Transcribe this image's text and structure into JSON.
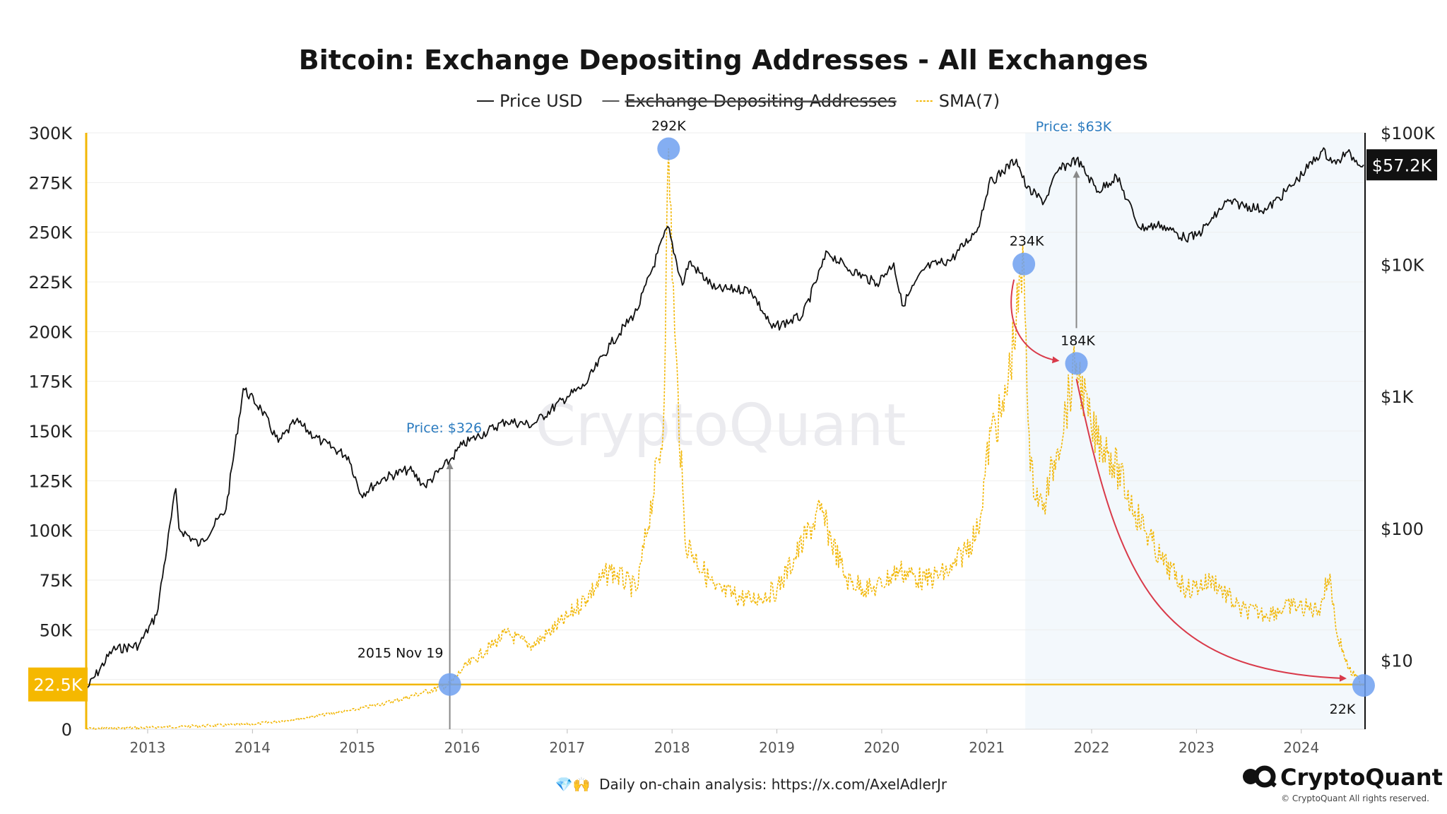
{
  "title": "Bitcoin: Exchange Depositing Addresses - All Exchanges",
  "legend": [
    {
      "label": "Price USD",
      "style": "solid",
      "color": "#222222",
      "struck": false
    },
    {
      "label": "Exchange Depositing Addresses",
      "style": "solid",
      "color": "#555555",
      "struck": true
    },
    {
      "label": "SMA(7)",
      "style": "dashed",
      "color": "#f2b705",
      "struck": false
    }
  ],
  "watermark": "CryptoQuant",
  "footer_text": "Daily on-chain analysis: https://x.com/AxelAdlerJr",
  "footer_icons": "💎🙌",
  "brand": "CryptoQuant",
  "copyright": "© CryptoQuant All rights reserved.",
  "colors": {
    "price": "#111111",
    "sma": "#f2b705",
    "left_axis": "#f2b705",
    "highlight_band": "#f3f8fc",
    "marker": "#6ea0f0",
    "arrow_red": "#d93a4a",
    "arrow_gray": "#888888",
    "badge_yellow": "#f5b800",
    "badge_black": "#111111"
  },
  "chart_data": {
    "type": "line",
    "title": "Bitcoin: Exchange Depositing Addresses - All Exchanges",
    "x_range": [
      "2012-06-01",
      "2024-08-10"
    ],
    "x_ticks": [
      "2013",
      "2014",
      "2015",
      "2016",
      "2017",
      "2018",
      "2019",
      "2020",
      "2021",
      "2022",
      "2023",
      "2024"
    ],
    "y_left": {
      "min": 0,
      "max": 300000,
      "ticks": [
        0,
        25000,
        50000,
        75000,
        100000,
        125000,
        150000,
        175000,
        200000,
        225000,
        250000,
        275000,
        300000
      ],
      "tick_labels": [
        "0",
        "25K",
        "50K",
        "75K",
        "100K",
        "125K",
        "150K",
        "175K",
        "200K",
        "225K",
        "250K",
        "275K",
        "300K"
      ]
    },
    "y_right": {
      "scale": "log",
      "min": 3,
      "max": 100000,
      "ticks": [
        10,
        100,
        1000,
        10000,
        100000
      ],
      "tick_labels": [
        "$10",
        "$100",
        "$1K",
        "$10K",
        "$100K"
      ]
    },
    "grid": true,
    "legend_position": "top-center",
    "highlight_range": [
      "2021-05-15",
      "2024-08-10"
    ],
    "reference_line": {
      "value": 22500,
      "label": "22.5K"
    },
    "last_price_badge": {
      "value": 57200,
      "label": "$57.2K"
    },
    "series": [
      {
        "name": "Price USD",
        "axis": "right",
        "points": [
          [
            "2012-06-01",
            6
          ],
          [
            "2012-09-01",
            12
          ],
          [
            "2012-12-01",
            13
          ],
          [
            "2013-02-01",
            22
          ],
          [
            "2013-04-09",
            200
          ],
          [
            "2013-04-20",
            100
          ],
          [
            "2013-07-01",
            75
          ],
          [
            "2013-10-01",
            140
          ],
          [
            "2013-11-30",
            1150
          ],
          [
            "2014-02-01",
            800
          ],
          [
            "2014-04-01",
            450
          ],
          [
            "2014-06-01",
            650
          ],
          [
            "2014-09-01",
            450
          ],
          [
            "2014-12-01",
            350
          ],
          [
            "2015-01-14",
            180
          ],
          [
            "2015-04-01",
            240
          ],
          [
            "2015-07-01",
            280
          ],
          [
            "2015-08-24",
            210
          ],
          [
            "2015-11-19",
            326
          ],
          [
            "2016-01-01",
            430
          ],
          [
            "2016-06-01",
            650
          ],
          [
            "2016-09-01",
            610
          ],
          [
            "2017-01-01",
            1000
          ],
          [
            "2017-03-01",
            1200
          ],
          [
            "2017-06-01",
            2500
          ],
          [
            "2017-09-01",
            4500
          ],
          [
            "2017-12-17",
            19500
          ],
          [
            "2018-02-06",
            7000
          ],
          [
            "2018-03-01",
            10500
          ],
          [
            "2018-06-01",
            6500
          ],
          [
            "2018-10-01",
            6500
          ],
          [
            "2018-12-15",
            3300
          ],
          [
            "2019-04-01",
            4100
          ],
          [
            "2019-06-26",
            12500
          ],
          [
            "2019-09-01",
            9500
          ],
          [
            "2019-12-15",
            7200
          ],
          [
            "2020-02-12",
            10300
          ],
          [
            "2020-03-12",
            4900
          ],
          [
            "2020-06-01",
            9500
          ],
          [
            "2020-09-01",
            11000
          ],
          [
            "2020-12-01",
            19000
          ],
          [
            "2021-01-08",
            41000
          ],
          [
            "2021-04-14",
            63000
          ],
          [
            "2021-05-20",
            38000
          ],
          [
            "2021-07-20",
            30000
          ],
          [
            "2021-09-07",
            52000
          ],
          [
            "2021-11-09",
            63000
          ],
          [
            "2022-01-24",
            36000
          ],
          [
            "2022-03-28",
            47000
          ],
          [
            "2022-06-18",
            19000
          ],
          [
            "2022-09-01",
            20000
          ],
          [
            "2022-11-21",
            16000
          ],
          [
            "2023-01-01",
            16500
          ],
          [
            "2023-03-01",
            22500
          ],
          [
            "2023-04-15",
            30000
          ],
          [
            "2023-09-01",
            26000
          ],
          [
            "2023-12-01",
            40000
          ],
          [
            "2024-03-14",
            73000
          ],
          [
            "2024-05-01",
            58000
          ],
          [
            "2024-06-05",
            71000
          ],
          [
            "2024-08-05",
            57200
          ]
        ]
      },
      {
        "name": "SMA(7)",
        "axis": "left",
        "points": [
          [
            "2012-06-01",
            200
          ],
          [
            "2013-01-01",
            800
          ],
          [
            "2013-06-01",
            1500
          ],
          [
            "2014-01-01",
            2500
          ],
          [
            "2014-06-01",
            5000
          ],
          [
            "2015-01-01",
            10000
          ],
          [
            "2015-06-01",
            15000
          ],
          [
            "2015-11-19",
            22500
          ],
          [
            "2016-01-01",
            30000
          ],
          [
            "2016-06-01",
            48000
          ],
          [
            "2016-09-01",
            42000
          ],
          [
            "2017-01-01",
            56000
          ],
          [
            "2017-06-01",
            80000
          ],
          [
            "2017-09-01",
            70000
          ],
          [
            "2017-12-01",
            150000
          ],
          [
            "2017-12-20",
            292000
          ],
          [
            "2018-01-10",
            200000
          ],
          [
            "2018-02-15",
            95000
          ],
          [
            "2018-06-01",
            70000
          ],
          [
            "2018-10-01",
            65000
          ],
          [
            "2019-01-01",
            70000
          ],
          [
            "2019-06-01",
            110000
          ],
          [
            "2019-09-01",
            75000
          ],
          [
            "2019-12-01",
            70000
          ],
          [
            "2020-03-01",
            80000
          ],
          [
            "2020-06-01",
            75000
          ],
          [
            "2020-09-01",
            80000
          ],
          [
            "2020-12-01",
            100000
          ],
          [
            "2021-01-15",
            150000
          ],
          [
            "2021-03-01",
            160000
          ],
          [
            "2021-05-10",
            234000
          ],
          [
            "2021-06-01",
            130000
          ],
          [
            "2021-07-15",
            110000
          ],
          [
            "2021-09-01",
            140000
          ],
          [
            "2021-11-09",
            184000
          ],
          [
            "2022-01-01",
            150000
          ],
          [
            "2022-03-01",
            140000
          ],
          [
            "2022-06-01",
            110000
          ],
          [
            "2022-09-01",
            85000
          ],
          [
            "2022-12-01",
            70000
          ],
          [
            "2023-03-01",
            75000
          ],
          [
            "2023-06-01",
            60000
          ],
          [
            "2023-09-01",
            58000
          ],
          [
            "2023-12-01",
            62000
          ],
          [
            "2024-03-01",
            60000
          ],
          [
            "2024-04-10",
            78000
          ],
          [
            "2024-05-01",
            50000
          ],
          [
            "2024-06-15",
            30000
          ],
          [
            "2024-08-05",
            22000
          ]
        ]
      }
    ],
    "annotations": [
      {
        "id": "peak-2017",
        "x": "2017-12-20",
        "y": 292000,
        "label": "292K",
        "marker": true
      },
      {
        "id": "peak-2021a",
        "x": "2021-05-10",
        "y": 234000,
        "label": "234K",
        "marker": true
      },
      {
        "id": "peak-2021b",
        "x": "2021-11-09",
        "y": 184000,
        "label": "184K",
        "marker": true
      },
      {
        "id": "low-2024",
        "x": "2024-08-05",
        "y": 22000,
        "label": "22K",
        "marker": true
      },
      {
        "id": "cross-2015",
        "x": "2015-11-19",
        "y": 22500,
        "label": "2015 Nov 19",
        "marker": true
      },
      {
        "id": "price-2015",
        "x": "2015-11-19",
        "price": 326,
        "label": "Price: $326"
      },
      {
        "id": "price-2021",
        "x": "2021-11-09",
        "price": 63000,
        "label": "Price: $63K"
      }
    ]
  }
}
